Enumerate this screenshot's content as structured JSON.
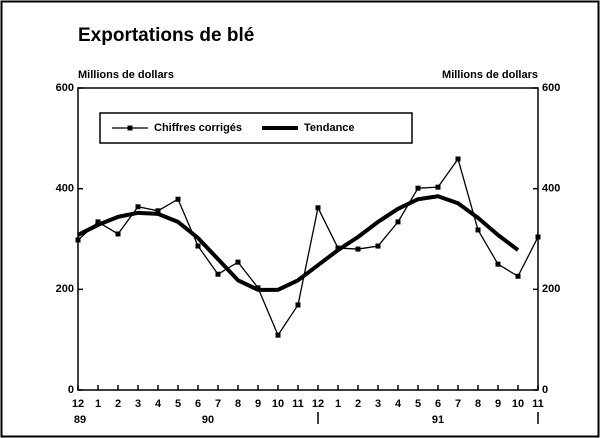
{
  "chart_data": {
    "type": "line",
    "title": "Exportations de blé",
    "y_label": "Millions de dollars",
    "y2_label": "Millions de dollars",
    "categories": [
      "12",
      "1",
      "2",
      "3",
      "4",
      "5",
      "6",
      "7",
      "8",
      "9",
      "10",
      "11",
      "12",
      "1",
      "2",
      "3",
      "4",
      "5",
      "6",
      "7",
      "8",
      "9",
      "10",
      "11"
    ],
    "series": [
      {
        "name": "Chiffres corrigés",
        "color": "#000000",
        "style": "markers",
        "values": [
          298,
          334,
          310,
          364,
          356,
          379,
          286,
          230,
          254,
          203,
          109,
          169,
          362,
          282,
          280,
          286,
          334,
          401,
          403,
          459,
          318,
          250,
          226,
          304
        ]
      },
      {
        "name": "Tendance",
        "color": "#000000",
        "style": "thick",
        "values": [
          308,
          328,
          344,
          352,
          350,
          334,
          302,
          260,
          218,
          199,
          199,
          218,
          248,
          278,
          304,
          334,
          360,
          379,
          385,
          371,
          342,
          308,
          278,
          null
        ]
      }
    ],
    "ylim": [
      0,
      600
    ],
    "yticks": [
      0,
      200,
      400,
      600
    ],
    "y2lim": [
      0,
      600
    ],
    "y2ticks": [
      0,
      200,
      400,
      600
    ],
    "annotations": [
      "89",
      "90",
      "91"
    ],
    "legend": "top-left",
    "grid": false
  }
}
